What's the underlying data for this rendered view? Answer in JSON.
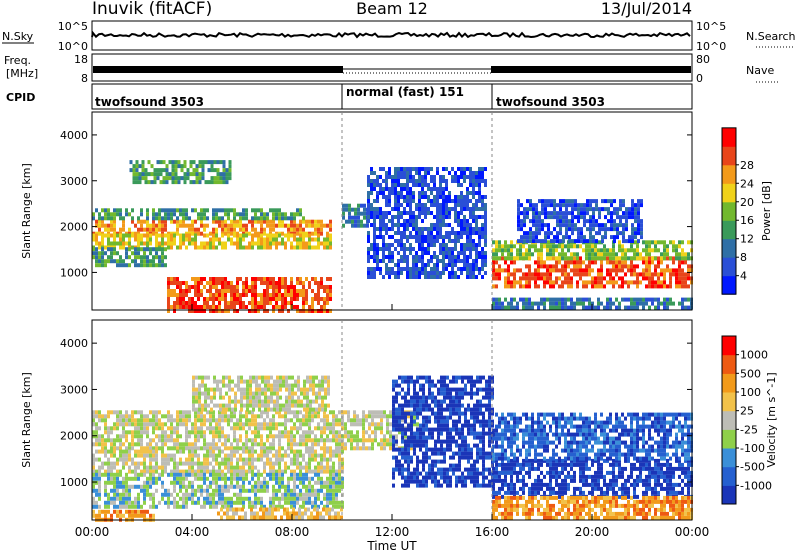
{
  "header": {
    "station": "Inuvik (fitACF)",
    "beam": "Beam 12",
    "date": "13/Jul/2014"
  },
  "nsky_panel": {
    "label": "N.Sky",
    "ticks": [
      "10^5",
      "10^0"
    ],
    "right_label": "N.Search",
    "right_ticks": [
      "10^5",
      "10^0"
    ]
  },
  "freq_panel": {
    "label_line1": "Freq.",
    "label_line2": "[MHz]",
    "ticks": [
      "18",
      "8"
    ],
    "right_label": "Nave",
    "right_ticks": [
      "80",
      "0"
    ]
  },
  "cpid_panel": {
    "label": "CPID",
    "segments": [
      {
        "name": "twofsound 3503",
        "start_hour": 0,
        "end_hour": 10
      },
      {
        "name": "normal (fast) 151",
        "start_hour": 10,
        "end_hour": 16
      },
      {
        "name": "twofsound 3503",
        "start_hour": 16,
        "end_hour": 24
      }
    ]
  },
  "chart_data": [
    {
      "type": "heatmap",
      "name": "power",
      "ylabel": "Slant Range [km]",
      "ylim": [
        180,
        4500
      ],
      "yticks": [
        1000,
        2000,
        3000,
        4000
      ],
      "colorbar": {
        "label": "Power [dB]",
        "ticks": [
          "4",
          "8",
          "12",
          "16",
          "20",
          "24",
          "28"
        ],
        "colors": [
          "#0018ff",
          "#2a4fd6",
          "#2f6fa6",
          "#3a9a5a",
          "#72b82e",
          "#f0d21a",
          "#f39a1a",
          "#e8451a",
          "#ff0000"
        ]
      },
      "regions": [
        {
          "start_hour": 0.0,
          "end_hour": 9.6,
          "range_min": 1850,
          "range_max": 2150,
          "level": 6
        },
        {
          "start_hour": 0.0,
          "end_hour": 9.6,
          "range_min": 1550,
          "range_max": 1850,
          "level": 5
        },
        {
          "start_hour": 0.0,
          "end_hour": 8.5,
          "range_min": 2150,
          "range_max": 2400,
          "level": 3
        },
        {
          "start_hour": 1.5,
          "end_hour": 5.5,
          "range_min": 3000,
          "range_max": 3450,
          "level": 3
        },
        {
          "start_hour": 0.0,
          "end_hour": 3.0,
          "range_min": 1200,
          "range_max": 1550,
          "level": 3
        },
        {
          "start_hour": 3.0,
          "end_hour": 9.5,
          "range_min": 200,
          "range_max": 900,
          "level": 7
        },
        {
          "start_hour": 10.0,
          "end_hour": 11.0,
          "range_min": 2000,
          "range_max": 2500,
          "level": 2
        },
        {
          "start_hour": 11.0,
          "end_hour": 15.8,
          "range_min": 900,
          "range_max": 3300,
          "level": 1
        },
        {
          "start_hour": 16.0,
          "end_hour": 24.0,
          "range_min": 700,
          "range_max": 1350,
          "level": 7
        },
        {
          "start_hour": 16.0,
          "end_hour": 24.0,
          "range_min": 1350,
          "range_max": 1700,
          "level": 4
        },
        {
          "start_hour": 16.0,
          "end_hour": 24.0,
          "range_min": 200,
          "range_max": 450,
          "level": 2
        },
        {
          "start_hour": 17.0,
          "end_hour": 22.0,
          "range_min": 1700,
          "range_max": 2600,
          "level": 1
        }
      ]
    },
    {
      "type": "heatmap",
      "name": "velocity",
      "ylabel": "Slant Range [km]",
      "ylim": [
        180,
        4500
      ],
      "yticks": [
        1000,
        2000,
        3000,
        4000
      ],
      "colorbar": {
        "label": "Velocity [m s^-1]",
        "ticks": [
          "1000",
          "500",
          "100",
          "25",
          "-25",
          "-100",
          "-500",
          "-1000"
        ],
        "colors": [
          "#1a35b8",
          "#2560d0",
          "#3a8fd8",
          "#8fd04a",
          "#bdbdb6",
          "#f2c24a",
          "#f29a1a",
          "#ee5a12",
          "#ff0000"
        ]
      },
      "regions": [
        {
          "start_hour": 0.0,
          "end_hour": 13.0,
          "range_min": 1700,
          "range_max": 2550,
          "level": 4
        },
        {
          "start_hour": 0.0,
          "end_hour": 10.0,
          "range_min": 1200,
          "range_max": 1700,
          "level": 4
        },
        {
          "start_hour": 4.0,
          "end_hour": 9.5,
          "range_min": 2600,
          "range_max": 3300,
          "level": 4
        },
        {
          "start_hour": 0.0,
          "end_hour": 10.0,
          "range_min": 450,
          "range_max": 1200,
          "level": 3
        },
        {
          "start_hour": 0.0,
          "end_hour": 2.5,
          "range_min": 200,
          "range_max": 400,
          "level": 6
        },
        {
          "start_hour": 5.0,
          "end_hour": 10.0,
          "range_min": 200,
          "range_max": 450,
          "level": 5
        },
        {
          "start_hour": 12.0,
          "end_hour": 16.0,
          "range_min": 900,
          "range_max": 3300,
          "level": 0
        },
        {
          "start_hour": 16.0,
          "end_hour": 24.0,
          "range_min": 700,
          "range_max": 1500,
          "level": 0
        },
        {
          "start_hour": 16.0,
          "end_hour": 24.0,
          "range_min": 1500,
          "range_max": 2500,
          "level": 1
        },
        {
          "start_hour": 16.0,
          "end_hour": 24.0,
          "range_min": 200,
          "range_max": 700,
          "level": 6
        }
      ]
    }
  ],
  "xaxis": {
    "label": "Time UT",
    "ticks": [
      "00:00",
      "04:00",
      "08:00",
      "12:00",
      "16:00",
      "20:00",
      "00:00"
    ]
  }
}
